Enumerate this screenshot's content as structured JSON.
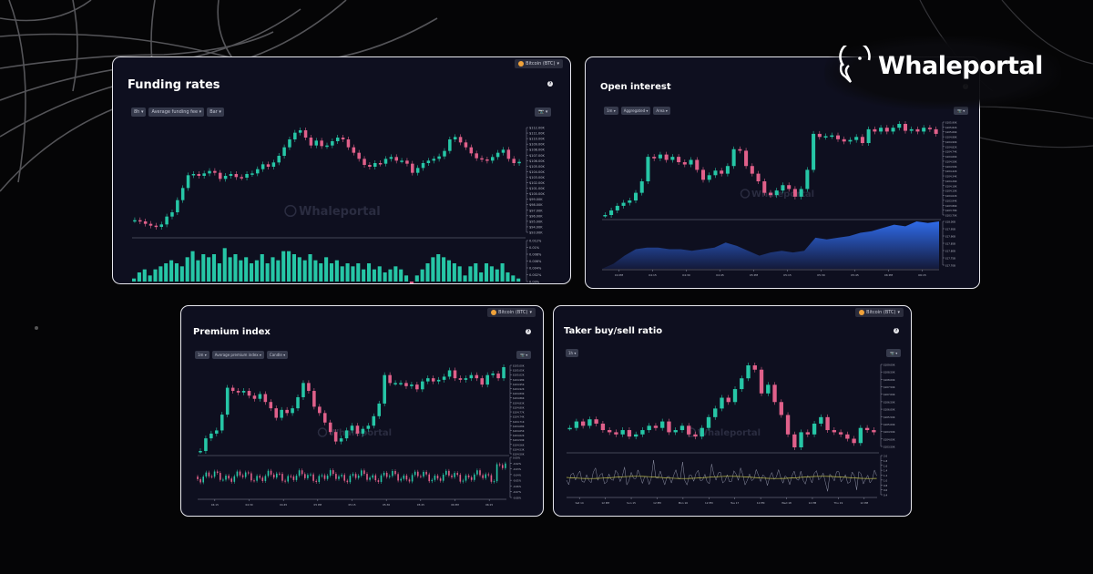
{
  "brand": {
    "name": "Whaleportal",
    "icon": "whale-icon"
  },
  "colors": {
    "up": "#26c6a6",
    "down": "#e0608a",
    "area": "#2f6ae8",
    "panel": "#0e0f1f",
    "border": "#e8e8ee"
  },
  "panels": {
    "funding": {
      "title": "Funding rates",
      "coin": "Bitcoin (BTC)",
      "help": "?",
      "controls": [
        "8h ▾",
        "Average funding fee ▾",
        "Bar ▾"
      ],
      "camera": "📷 ▾",
      "y_price": [
        "$112.00K",
        "$111.00K",
        "$110.00K",
        "$109.00K",
        "$108.00K",
        "$107.00K",
        "$106.00K",
        "$105.00K",
        "$104.00K",
        "$103.00K",
        "$102.00K",
        "$101.00K",
        "$100.00K",
        "$99.00K",
        "$98.00K",
        "$97.00K",
        "$96.00K",
        "$95.00K",
        "$94.00K",
        "$93.00K"
      ],
      "y_sub": [
        "0.012%",
        "0.01%",
        "0.008%",
        "0.006%",
        "0.004%",
        "0.002%",
        "0.00%"
      ],
      "watermark": "Whaleportal"
    },
    "oi": {
      "title": "Open interest",
      "help": "?",
      "controls": [
        "1m ▾",
        "Aggregated ▾",
        "Area ▾"
      ],
      "camera": "📷 ▾",
      "y_price": [
        "$105.90K",
        "$105.82K",
        "$105.66K",
        "$104.98K",
        "$104.90K",
        "$104.82K",
        "$104.74K",
        "$104.66K",
        "$104.58K",
        "$104.50K",
        "$104.42K",
        "$104.34K",
        "$104.26K",
        "$104.18K",
        "$104.10K",
        "$104.02K",
        "$103.94K",
        "$103.86K",
        "$103.78K",
        "$103.70K"
      ],
      "y_sub": [
        "$18.00B",
        "$17.95B",
        "$17.90B",
        "$17.85B",
        "$17.80B",
        "$17.75B",
        "$17.70B"
      ],
      "x": [
        "04 PM",
        "04:15",
        "04:30",
        "04:45",
        "05 PM",
        "05:15",
        "05:30",
        "05:45",
        "06 PM",
        "06:15"
      ],
      "watermark": "Whaleportal"
    },
    "premium": {
      "title": "Premium index",
      "coin": "Bitcoin (BTC)",
      "help": "?",
      "controls": [
        "1m ▾",
        "Average premium index ▾",
        "Candle ▾"
      ],
      "camera": "📷 ▾",
      "y_price": [
        "$105.00K",
        "$105.05K",
        "$105.02K",
        "$104.98K",
        "$104.95K",
        "$104.92K",
        "$104.89K",
        "$104.86K",
        "$104.83K",
        "$104.80K",
        "$104.77K",
        "$104.74K",
        "$104.71K",
        "$104.68K",
        "$104.65K",
        "$104.62K",
        "$104.59K",
        "$104.56K",
        "$104.53K",
        "$104.50K"
      ],
      "y_sub": [
        "0.00%",
        "-0.02%",
        "-0.03%",
        "-0.04%",
        "-0.05%",
        "-0.06%",
        "-0.07%",
        "-0.08%"
      ],
      "x": [
        "04:15",
        "04:30",
        "04:45",
        "05 PM",
        "05:15",
        "05:30",
        "05:45",
        "06 PM",
        "06:15"
      ],
      "watermark": "Whaleportal"
    },
    "taker": {
      "title": "Taker buy/sell ratio",
      "coin": "Bitcoin (BTC)",
      "help": "?",
      "controls": [
        "1h ▾"
      ],
      "camera": "📷 ▾",
      "y_price": [
        "$109.00K",
        "$108.50K",
        "$108.00K",
        "$107.50K",
        "$107.00K",
        "$106.50K",
        "$106.00K",
        "$105.50K",
        "$105.00K",
        "$104.50K",
        "$104.00K",
        "$103.50K"
      ],
      "y_sub": [
        "2.0",
        "1.8",
        "1.6",
        "1.4",
        "1.2",
        "1.0",
        "0.8",
        "0.6",
        "0.4"
      ],
      "x": [
        "Sat 14",
        "12 PM",
        "Sun 15",
        "12 PM",
        "Mon 16",
        "12 PM",
        "Tue 17",
        "12 PM",
        "Wed 18",
        "12 PM",
        "Thu 19",
        "12 PM"
      ],
      "watermark": "Whaleportal"
    }
  },
  "chart_data": [
    {
      "type": "candlestick",
      "title": "Funding rates",
      "series": [
        {
          "name": "BTC price",
          "values": [
            95.2,
            95.0,
            94.6,
            94.3,
            94.1,
            94.5,
            95.8,
            96.5,
            98.5,
            100.5,
            102.6,
            102.8,
            102.5,
            102.9,
            103.3,
            103.0,
            102.0,
            102.5,
            102.8,
            102.3,
            102.2,
            102.8,
            102.9,
            103.6,
            104.4,
            104.0,
            104.7,
            105.8,
            107.2,
            108.5,
            109.6,
            110.0,
            108.8,
            107.5,
            108.3,
            107.4,
            107.5,
            108.2,
            108.8,
            108.5,
            107.2,
            106.3,
            105.3,
            104.3,
            104.0,
            104.6,
            104.5,
            105.3,
            105.6,
            105.0,
            105.0,
            104.5,
            103.0,
            103.8,
            104.6,
            105.0,
            105.3,
            105.7,
            106.6,
            108.5,
            108.9,
            108.0,
            107.2,
            106.2,
            105.4,
            105.2,
            105.0,
            105.6,
            106.3,
            106.8,
            105.3,
            104.6,
            104.8
          ]
        },
        {
          "name": "Average funding fee",
          "values": [
            0.001,
            0.003,
            0.004,
            0.002,
            0.004,
            0.005,
            0.006,
            0.007,
            0.006,
            0.005,
            0.008,
            0.01,
            0.007,
            0.009,
            0.008,
            0.009,
            0.006,
            0.011,
            0.008,
            0.009,
            0.007,
            0.008,
            0.006,
            0.007,
            0.009,
            0.006,
            0.008,
            0.007,
            0.01,
            0.01,
            0.009,
            0.008,
            0.007,
            0.009,
            0.007,
            0.006,
            0.008,
            0.006,
            0.007,
            0.005,
            0.006,
            0.005,
            0.006,
            0.004,
            0.006,
            0.004,
            0.005,
            0.003,
            0.004,
            0.005,
            0.004,
            0.002,
            -0.001,
            0.002,
            0.004,
            0.006,
            0.008,
            0.009,
            0.008,
            0.007,
            0.006,
            0.005,
            0.002,
            0.005,
            0.006,
            0.003,
            0.006,
            0.005,
            0.004,
            0.006,
            0.003,
            0.002,
            0.001
          ]
        }
      ]
    },
    {
      "type": "candlestick+area",
      "title": "Open interest",
      "series": [
        {
          "name": "BTC price",
          "values": [
            103.76,
            103.82,
            103.88,
            103.92,
            103.95,
            104.05,
            104.2,
            104.52,
            104.5,
            104.55,
            104.48,
            104.52,
            104.45,
            104.42,
            104.48,
            104.35,
            104.22,
            104.28,
            104.34,
            104.3,
            104.4,
            104.62,
            104.6,
            104.4,
            104.3,
            104.2,
            104.05,
            104.02,
            104.08,
            104.15,
            104.1,
            104.0,
            104.1,
            104.35,
            104.82,
            104.78,
            104.79,
            104.8,
            104.75,
            104.72,
            104.74,
            104.78,
            104.7,
            104.88,
            104.85,
            104.9,
            104.85,
            104.9,
            104.95,
            104.86,
            104.88,
            104.85,
            104.9,
            104.88,
            104.82
          ]
        },
        {
          "name": "Open interest",
          "values": [
            17.7,
            17.73,
            17.78,
            17.82,
            17.83,
            17.83,
            17.82,
            17.82,
            17.81,
            17.82,
            17.83,
            17.86,
            17.84,
            17.81,
            17.78,
            17.8,
            17.81,
            17.8,
            17.81,
            17.89,
            17.88,
            17.89,
            17.9,
            17.92,
            17.93,
            17.95,
            17.97,
            17.96,
            17.99,
            17.98,
            17.99
          ]
        }
      ]
    },
    {
      "type": "candlestick",
      "title": "Premium index",
      "series": [
        {
          "name": "BTC price",
          "values": [
            104.52,
            104.6,
            104.63,
            104.65,
            104.75,
            104.92,
            104.9,
            104.89,
            104.9,
            104.87,
            104.85,
            104.88,
            104.83,
            104.79,
            104.73,
            104.78,
            104.76,
            104.79,
            104.86,
            104.95,
            104.9,
            104.8,
            104.76,
            104.7,
            104.64,
            104.58,
            104.6,
            104.65,
            104.68,
            104.63,
            104.66,
            104.68,
            104.74,
            104.82,
            105.0,
            104.95,
            104.95,
            104.95,
            104.93,
            104.94,
            104.91,
            104.96,
            104.98,
            104.96,
            104.97,
            104.99,
            105.03,
            104.98,
            104.97,
            104.98,
            105.0,
            104.98,
            104.94,
            105.0,
            105.01,
            104.98,
            105.05
          ]
        }
      ]
    },
    {
      "type": "candlestick+line",
      "title": "Taker buy/sell ratio",
      "series": [
        {
          "name": "BTC price",
          "values": [
            105.0,
            105.3,
            105.1,
            105.4,
            105.2,
            104.9,
            104.8,
            104.7,
            104.9,
            104.6,
            104.7,
            104.9,
            105.1,
            105.0,
            105.3,
            104.8,
            104.9,
            105.1,
            104.7,
            104.6,
            105.0,
            105.5,
            105.9,
            106.4,
            106.2,
            106.8,
            107.3,
            107.9,
            107.7,
            106.6,
            107.0,
            106.2,
            105.6,
            104.7,
            104.1,
            104.8,
            104.7,
            105.2,
            105.5,
            104.9,
            104.8,
            104.7,
            104.5,
            104.3,
            105.0,
            104.9,
            104.8
          ]
        },
        {
          "name": "Taker ratio",
          "values": [
            1.0,
            1.1,
            0.9,
            1.2,
            0.95,
            1.05,
            1.0,
            1.2,
            0.9,
            1.1,
            1.0
          ]
        }
      ]
    }
  ]
}
